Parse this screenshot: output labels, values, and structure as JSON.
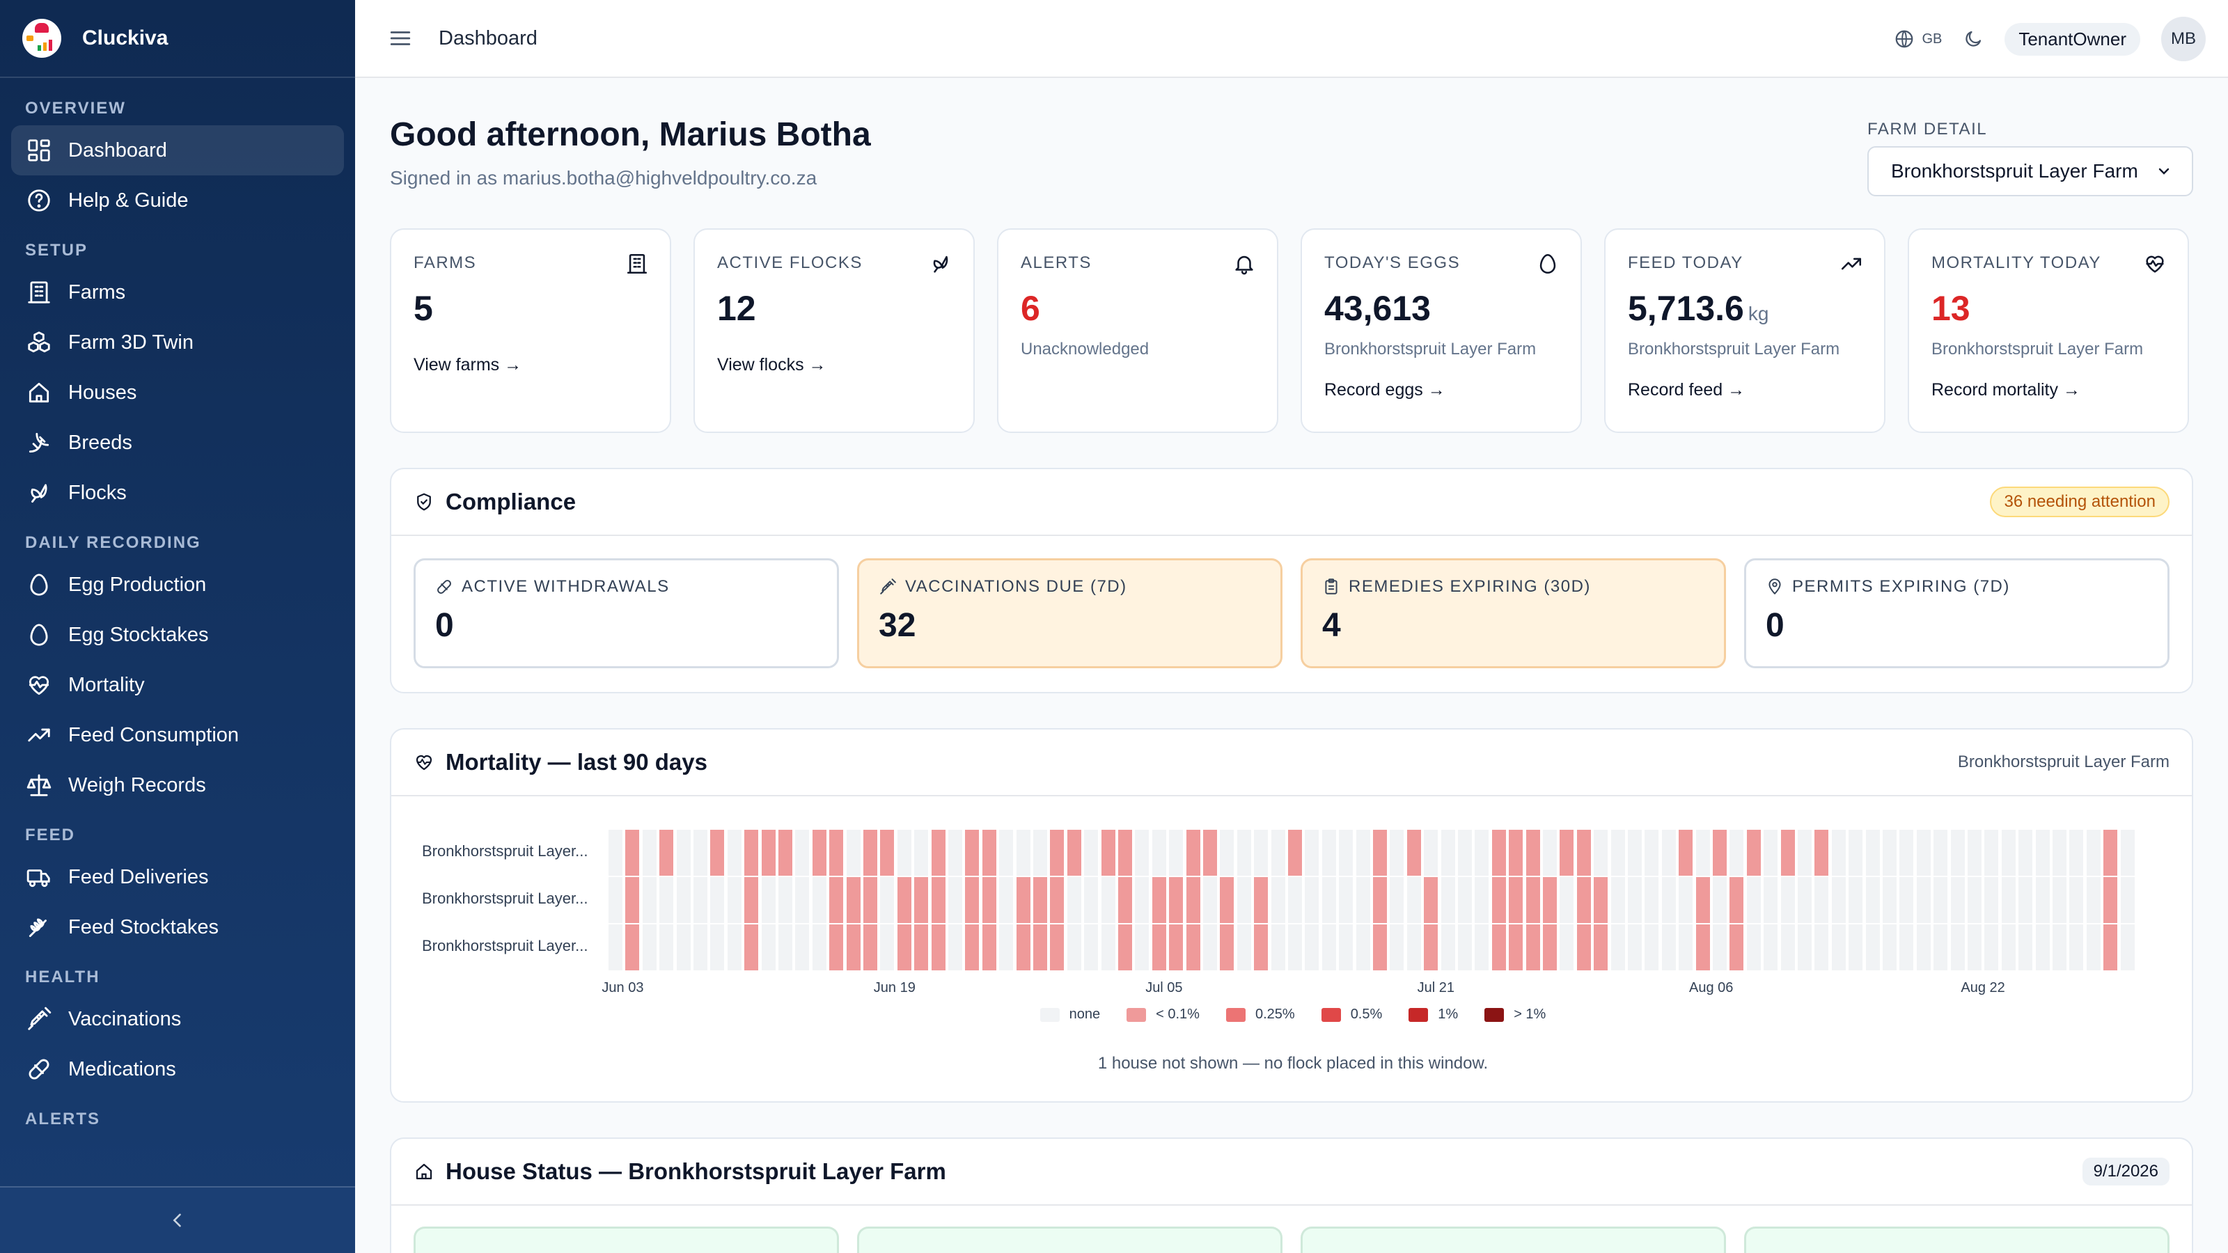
{
  "app": {
    "name": "Cluckiva"
  },
  "sidebar": {
    "sections": [
      {
        "title": "OVERVIEW",
        "items": [
          {
            "label": "Dashboard",
            "icon": "dashboard-grid-icon",
            "active": true
          },
          {
            "label": "Help & Guide",
            "icon": "help-circle-icon"
          }
        ]
      },
      {
        "title": "SETUP",
        "items": [
          {
            "label": "Farms",
            "icon": "building-icon"
          },
          {
            "label": "Farm 3D Twin",
            "icon": "cubes-icon"
          },
          {
            "label": "Houses",
            "icon": "house-icon"
          },
          {
            "label": "Breeds",
            "icon": "dna-icon"
          },
          {
            "label": "Flocks",
            "icon": "bird-icon"
          }
        ]
      },
      {
        "title": "DAILY RECORDING",
        "items": [
          {
            "label": "Egg Production",
            "icon": "egg-icon"
          },
          {
            "label": "Egg Stocktakes",
            "icon": "egg-icon"
          },
          {
            "label": "Mortality",
            "icon": "heart-pulse-icon"
          },
          {
            "label": "Feed Consumption",
            "icon": "trend-up-icon"
          },
          {
            "label": "Weigh Records",
            "icon": "scale-icon"
          }
        ]
      },
      {
        "title": "FEED",
        "items": [
          {
            "label": "Feed Deliveries",
            "icon": "truck-icon"
          },
          {
            "label": "Feed Stocktakes",
            "icon": "wheat-icon"
          }
        ]
      },
      {
        "title": "HEALTH",
        "items": [
          {
            "label": "Vaccinations",
            "icon": "syringe-icon"
          },
          {
            "label": "Medications",
            "icon": "pill-icon"
          }
        ]
      },
      {
        "title": "ALERTS",
        "items": []
      }
    ]
  },
  "topbar": {
    "title": "Dashboard",
    "language": "GB",
    "role": "TenantOwner",
    "avatar_initials": "MB"
  },
  "header": {
    "greeting": "Good afternoon, Marius Botha",
    "signed_in": "Signed in as marius.botha@highveldpoultry.co.za",
    "farm_detail_label": "FARM DETAIL",
    "farm_detail_value": "Bronkhorstspruit Layer Farm"
  },
  "kpis": [
    {
      "label": "FARMS",
      "value": "5",
      "unit": "",
      "sub": "",
      "link": "View farms →",
      "icon": "building-icon",
      "red": false
    },
    {
      "label": "ACTIVE FLOCKS",
      "value": "12",
      "unit": "",
      "sub": "",
      "link": "View flocks →",
      "icon": "bird-icon",
      "red": false
    },
    {
      "label": "ALERTS",
      "value": "6",
      "unit": "",
      "sub": "Unacknowledged",
      "link": "",
      "icon": "bell-icon",
      "red": true
    },
    {
      "label": "TODAY'S EGGS",
      "value": "43,613",
      "unit": "",
      "sub": "Bronkhorstspruit Layer Farm",
      "link": "Record eggs →",
      "icon": "egg-icon",
      "red": false
    },
    {
      "label": "FEED TODAY",
      "value": "5,713.6",
      "unit": "kg",
      "sub": "Bronkhorstspruit Layer Farm",
      "link": "Record feed →",
      "icon": "trend-up-icon",
      "red": false
    },
    {
      "label": "MORTALITY TODAY",
      "value": "13",
      "unit": "",
      "sub": "Bronkhorstspruit Layer Farm",
      "link": "Record mortality →",
      "icon": "heart-pulse-icon",
      "red": true
    }
  ],
  "compliance": {
    "title": "Compliance",
    "badge": "36 needing attention",
    "cards": [
      {
        "label": "ACTIVE WITHDRAWALS",
        "value": "0",
        "icon": "pill-icon",
        "warn": false
      },
      {
        "label": "VACCINATIONS DUE (7D)",
        "value": "32",
        "icon": "syringe-icon",
        "warn": true
      },
      {
        "label": "REMEDIES EXPIRING (30D)",
        "value": "4",
        "icon": "clipboard-icon",
        "warn": true
      },
      {
        "label": "PERMITS EXPIRING (7D)",
        "value": "0",
        "icon": "map-pin-icon",
        "warn": false
      }
    ]
  },
  "mortality": {
    "title": "Mortality — last 90 days",
    "farm": "Bronkhorstspruit Layer Farm",
    "note": "1 house not shown — no flock placed in this window.",
    "legend": [
      {
        "label": "none",
        "color": "#f1f3f5"
      },
      {
        "label": "< 0.1%",
        "color": "#ef9a9a"
      },
      {
        "label": "0.25%",
        "color": "#ec7474"
      },
      {
        "label": "0.5%",
        "color": "#e04848"
      },
      {
        "label": "1%",
        "color": "#c62828"
      },
      {
        "label": "> 1%",
        "color": "#8b1414"
      }
    ]
  },
  "chart_data": {
    "type": "heatmap",
    "title": "Mortality — last 90 days",
    "rows": [
      "Bronkhorstspruit Layer...",
      "Bronkhorstspruit Layer...",
      "Bronkhorstspruit Layer..."
    ],
    "x_ticks": [
      "Jun 03",
      "Jun 19",
      "Jul 05",
      "Jul 21",
      "Aug 06",
      "Aug 22"
    ],
    "x_tick_days": [
      1,
      17,
      33,
      49,
      65,
      81
    ],
    "days": 90,
    "level_colors": [
      "#f1f3f5",
      "#ef9a9a"
    ],
    "row1_levels": [
      0,
      1,
      0,
      1,
      0,
      0,
      1,
      0,
      1,
      1,
      1,
      0,
      1,
      1,
      0,
      1,
      1,
      0,
      0,
      1,
      0,
      1,
      1,
      0,
      0,
      0,
      1,
      1,
      0,
      1,
      1,
      0,
      0,
      0,
      1,
      1,
      0,
      0,
      0,
      0,
      1,
      0,
      0,
      0,
      0,
      1,
      0,
      1,
      0,
      0,
      0,
      0,
      1,
      1,
      1,
      0,
      1,
      1,
      0,
      0,
      0,
      0,
      0,
      1,
      0,
      1,
      0,
      1,
      0,
      1,
      0,
      1,
      0,
      0,
      0,
      0,
      0,
      0,
      0,
      0,
      0,
      0,
      0,
      0,
      0,
      0,
      0,
      0,
      1,
      0
    ],
    "row2_levels": [
      0,
      1,
      0,
      0,
      0,
      0,
      0,
      0,
      1,
      0,
      0,
      0,
      0,
      1,
      1,
      1,
      0,
      1,
      1,
      1,
      0,
      1,
      1,
      0,
      1,
      1,
      1,
      0,
      0,
      0,
      1,
      0,
      1,
      1,
      1,
      0,
      1,
      0,
      1,
      0,
      0,
      0,
      0,
      0,
      0,
      1,
      0,
      0,
      1,
      0,
      0,
      0,
      1,
      1,
      1,
      1,
      0,
      1,
      1,
      0,
      0,
      0,
      0,
      0,
      1,
      0,
      1,
      0,
      0,
      0,
      0,
      0,
      0,
      0,
      0,
      0,
      0,
      0,
      0,
      0,
      0,
      0,
      0,
      0,
      0,
      0,
      0,
      0,
      1,
      0
    ],
    "row3_levels": [
      0,
      1,
      0,
      0,
      0,
      0,
      0,
      0,
      1,
      0,
      0,
      0,
      0,
      1,
      1,
      1,
      0,
      1,
      1,
      1,
      0,
      1,
      1,
      0,
      1,
      1,
      1,
      0,
      0,
      0,
      1,
      0,
      1,
      1,
      1,
      0,
      1,
      0,
      1,
      0,
      0,
      0,
      0,
      0,
      0,
      1,
      0,
      0,
      1,
      0,
      0,
      0,
      1,
      1,
      1,
      1,
      0,
      1,
      1,
      0,
      0,
      0,
      0,
      0,
      1,
      0,
      1,
      0,
      0,
      0,
      0,
      0,
      0,
      0,
      0,
      0,
      0,
      0,
      0,
      0,
      0,
      0,
      0,
      0,
      0,
      0,
      0,
      0,
      1,
      0
    ]
  },
  "house_status": {
    "title": "House Status — Bronkhorstspruit Layer Farm",
    "date": "9/1/2026"
  }
}
